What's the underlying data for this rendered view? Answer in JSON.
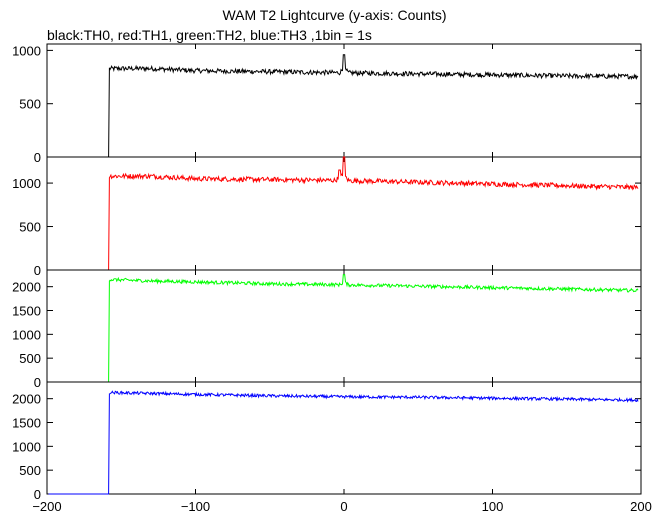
{
  "title": "WAM T2 Lightcurve (y-axis: Counts)",
  "subtitle": "black:TH0, red:TH1, green:TH2, blue:TH3 ,1bin = 1s",
  "chart_data": {
    "type": "line",
    "xlim": [
      -200,
      200
    ],
    "x_ticks": [
      -200,
      -100,
      0,
      100,
      200
    ],
    "x_tick_labels": [
      "−200",
      "−100",
      "0",
      "100",
      "200"
    ],
    "trigger_time": -158,
    "panels": [
      {
        "name": "TH0",
        "color": "#000000",
        "ylim": [
          0,
          1060
        ],
        "y_ticks": [
          0,
          500,
          1000
        ],
        "y_tick_labels": [
          "0",
          "500",
          "1000"
        ],
        "pre_level": 0,
        "post_profile": [
          [
            -158,
            830
          ],
          [
            -130,
            830
          ],
          [
            -100,
            810
          ],
          [
            -50,
            800
          ],
          [
            0,
            790
          ],
          [
            50,
            780
          ],
          [
            100,
            770
          ],
          [
            150,
            760
          ],
          [
            198,
            755
          ]
        ],
        "peaks": [
          {
            "x": 0,
            "y": 960
          }
        ],
        "noise": 22
      },
      {
        "name": "TH1",
        "color": "#ff0000",
        "ylim": [
          0,
          1300
        ],
        "y_ticks": [
          0,
          500,
          1000
        ],
        "y_tick_labels": [
          "0",
          "500",
          "1000"
        ],
        "pre_level": 0,
        "post_profile": [
          [
            -158,
            1080
          ],
          [
            -130,
            1080
          ],
          [
            -100,
            1050
          ],
          [
            -50,
            1040
          ],
          [
            0,
            1030
          ],
          [
            50,
            1010
          ],
          [
            100,
            990
          ],
          [
            150,
            970
          ],
          [
            198,
            950
          ]
        ],
        "peaks": [
          {
            "x": 0,
            "y": 1300
          },
          {
            "x": -3,
            "y": 1150
          }
        ],
        "noise": 28
      },
      {
        "name": "TH2",
        "color": "#00ff00",
        "ylim": [
          0,
          2350
        ],
        "y_ticks": [
          0,
          500,
          1000,
          1500,
          2000
        ],
        "y_tick_labels": [
          "0",
          "500",
          "1000",
          "1500",
          "2000"
        ],
        "pre_level": 0,
        "post_profile": [
          [
            -158,
            2150
          ],
          [
            -130,
            2120
          ],
          [
            -100,
            2100
          ],
          [
            -50,
            2060
          ],
          [
            0,
            2040
          ],
          [
            50,
            2010
          ],
          [
            100,
            1980
          ],
          [
            150,
            1950
          ],
          [
            198,
            1920
          ]
        ],
        "peaks": [
          {
            "x": 0,
            "y": 2250
          }
        ],
        "noise": 35
      },
      {
        "name": "TH3",
        "color": "#0000ff",
        "ylim": [
          0,
          2350
        ],
        "y_ticks": [
          0,
          500,
          1000,
          1500,
          2000
        ],
        "y_tick_labels": [
          "0",
          "500",
          "1000",
          "1500",
          "2000"
        ],
        "pre_level": 0,
        "post_profile": [
          [
            -158,
            2130
          ],
          [
            -130,
            2110
          ],
          [
            -100,
            2090
          ],
          [
            -50,
            2060
          ],
          [
            0,
            2040
          ],
          [
            50,
            2030
          ],
          [
            100,
            2010
          ],
          [
            150,
            1990
          ],
          [
            198,
            1970
          ]
        ],
        "peaks": [],
        "noise": 30
      }
    ]
  }
}
